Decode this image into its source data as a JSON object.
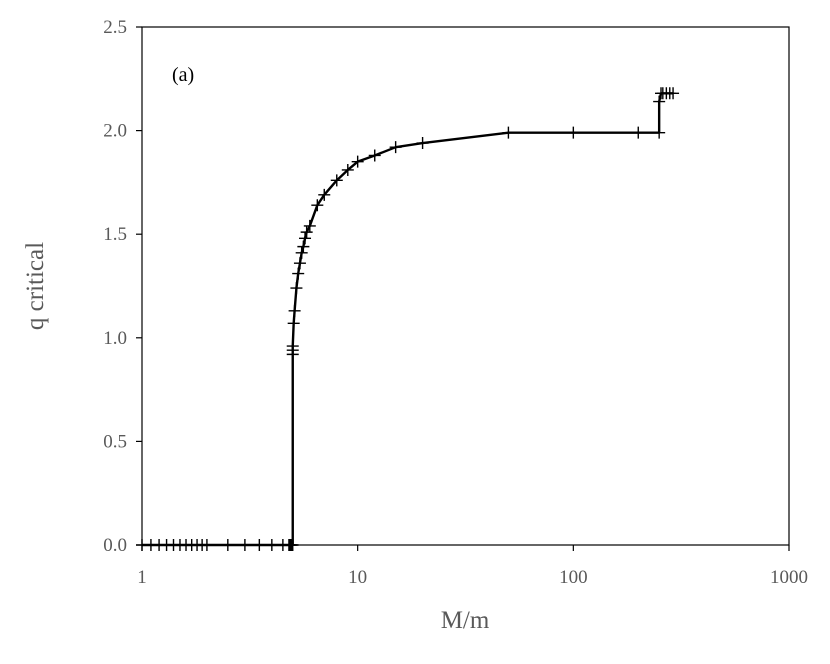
{
  "chart_data": {
    "type": "line",
    "annotation": "(a)",
    "xlabel": "M/m",
    "ylabel": "q critical",
    "x_scale": "log",
    "xlim": [
      1,
      1000
    ],
    "ylim": [
      0,
      2.5
    ],
    "x_ticks": [
      1,
      10,
      100,
      1000
    ],
    "x_tick_labels": [
      "1",
      "10",
      "100",
      "1000"
    ],
    "y_ticks": [
      0,
      0.5,
      1,
      1.5,
      2,
      2.5
    ],
    "y_tick_labels": [
      "0.0",
      "0.5",
      "1.0",
      "1.5",
      "2.0",
      "2.5"
    ],
    "grid": false,
    "legend": "none",
    "line_color": "#000000",
    "series": [
      {
        "marker": "plus",
        "x": [
          1,
          1.1,
          1.2,
          1.3,
          1.4,
          1.5,
          1.6,
          1.7,
          1.8,
          1.9,
          2.0,
          2.5,
          3.0,
          3.5,
          4.0,
          4.5,
          4.8,
          4.85,
          4.9,
          4.95,
          5.0,
          5.0,
          5.0,
          5.0,
          5.05,
          5.1,
          5.2,
          5.3,
          5.4,
          5.5,
          5.6,
          5.7,
          5.8,
          6.0,
          6.5,
          7.0,
          8.0,
          9.0,
          10,
          12,
          15,
          20,
          50,
          100,
          200,
          250,
          250,
          255,
          260,
          270,
          280,
          290
        ],
        "y": [
          0,
          0,
          0,
          0,
          0,
          0,
          0,
          0,
          0,
          0,
          0,
          0,
          0,
          0,
          0,
          0,
          0,
          0,
          0,
          0,
          0,
          0.92,
          0.94,
          0.96,
          1.07,
          1.13,
          1.24,
          1.31,
          1.36,
          1.41,
          1.44,
          1.48,
          1.51,
          1.54,
          1.64,
          1.69,
          1.76,
          1.81,
          1.85,
          1.88,
          1.92,
          1.94,
          1.99,
          1.99,
          1.99,
          1.99,
          2.14,
          2.18,
          2.18,
          2.18,
          2.18,
          2.18
        ]
      }
    ]
  }
}
